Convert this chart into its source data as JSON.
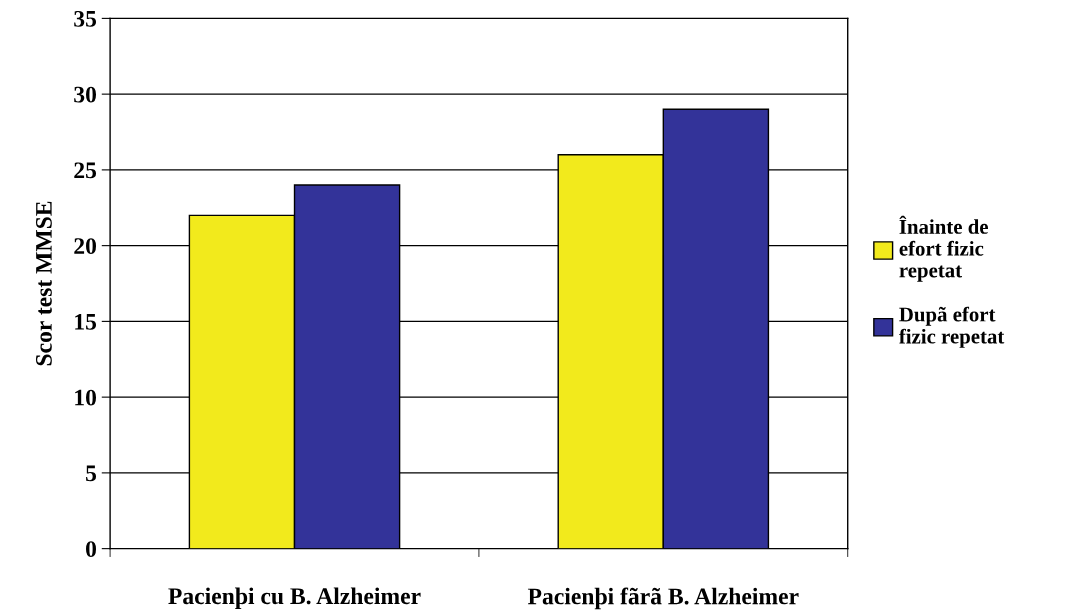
{
  "chart_data": {
    "type": "bar",
    "ylabel": "Scor test MMSE",
    "categories": [
      "Pacienþi cu B. Alzheimer",
      "Pacienþi fãrã B. Alzheimer"
    ],
    "series": [
      {
        "name": "Înainte de efort fizic repetat",
        "color": "#f2ea1c",
        "values": [
          22,
          26
        ]
      },
      {
        "name": "Dupã efort fizic repetat",
        "color": "#333399",
        "values": [
          24,
          29
        ]
      }
    ],
    "ylim": [
      0,
      35
    ],
    "yticks": [
      0,
      5,
      10,
      15,
      20,
      25,
      30,
      35
    ],
    "grid": "y",
    "legend": "right"
  }
}
